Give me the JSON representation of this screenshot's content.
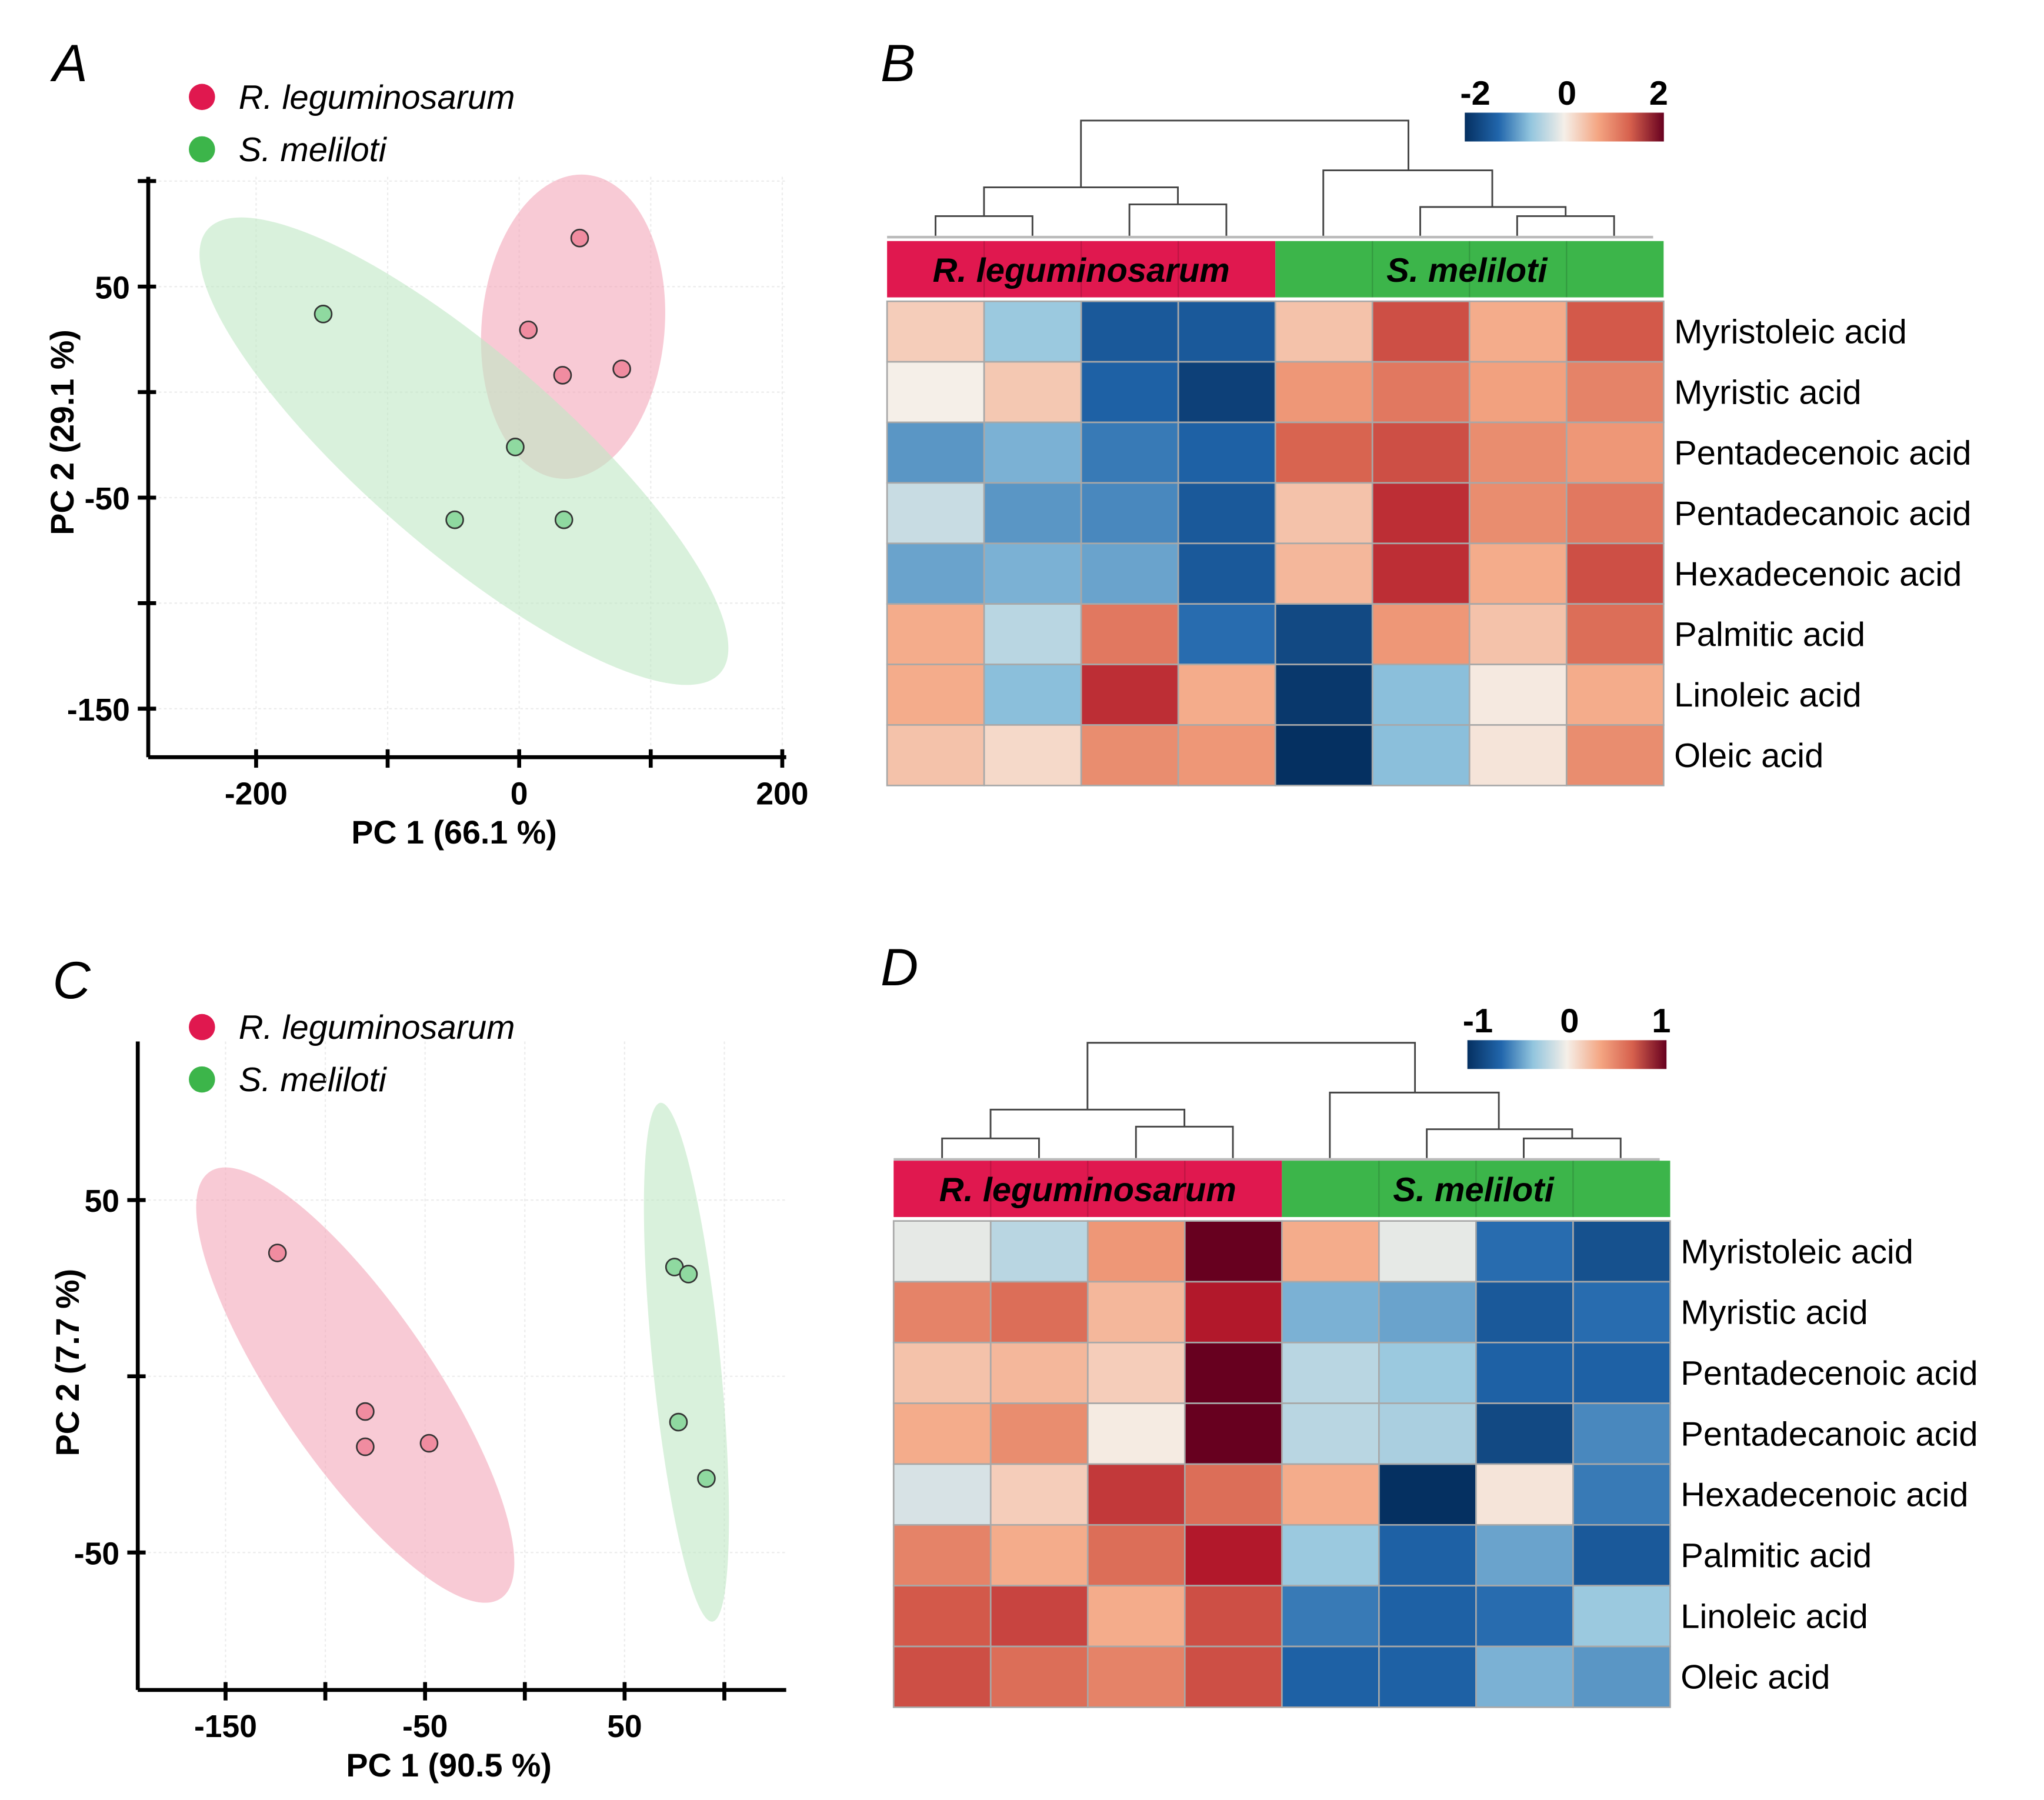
{
  "colors": {
    "r_leguminosarum": "#e0184f",
    "s_meliloti": "#3cb54a",
    "point_pink": "#f08ca0",
    "point_green": "#8fd9a0",
    "ellipse_pink": "#f4a7b9",
    "ellipse_green": "#bfe8c5"
  },
  "chart_data": [
    {
      "id": "A",
      "type": "scatter",
      "panel_label": "A",
      "xlabel": "PC 1 (66.1 %)",
      "ylabel": "PC 2 (29.1 %)",
      "xlim": [
        -282,
        203
      ],
      "ylim": [
        -173,
        102
      ],
      "xticks": [
        -200,
        -100,
        0,
        100,
        200
      ],
      "xtick_labels": [
        "-200",
        "0",
        "200"
      ],
      "xtick_label_values": [
        -200,
        0,
        200
      ],
      "yticks": [
        100,
        50,
        0,
        -50,
        -100,
        -150
      ],
      "ytick_labels": [
        "50",
        "-50",
        "-150"
      ],
      "ytick_label_values": [
        50,
        -50,
        -150
      ],
      "grid": true,
      "legend_position": "top-left",
      "series": [
        {
          "name": "R. leguminosarum",
          "color_key": "r_leguminosarum",
          "points": [
            [
              46,
              73
            ],
            [
              7,
              29.5
            ],
            [
              33,
              8
            ],
            [
              78,
              11
            ]
          ],
          "ellipse": {
            "center": [
              41,
              31
            ],
            "major_end": [
              51,
              103
            ],
            "minor_ratio": 0.6
          }
        },
        {
          "name": "S. meliloti",
          "color_key": "s_meliloti",
          "points": [
            [
              -149,
              37
            ],
            [
              -3,
              -26
            ],
            [
              -49,
              -60.5
            ],
            [
              34,
              -60.5
            ]
          ],
          "ellipse": {
            "center": [
              -42,
              -28
            ],
            "major_end": [
              -237,
              77
            ],
            "minor_ratio": 0.29
          }
        }
      ]
    },
    {
      "id": "B",
      "type": "heatmap",
      "panel_label": "B",
      "color_scale": {
        "min": -2,
        "max": 2,
        "labels": [
          "-2",
          "0",
          "2"
        ]
      },
      "groups": [
        {
          "name": "R. leguminosarum",
          "columns": 4
        },
        {
          "name": "S. meliloti",
          "columns": 4
        }
      ],
      "rows": [
        "Myristoleic acid",
        "Myristic acid",
        "Pentadecenoic acid",
        "Pentadecanoic acid",
        "Hexadecenoic acid",
        "Palmitic acid",
        "Linoleic acid",
        "Oleic acid"
      ],
      "values": [
        [
          0.3,
          -0.6,
          -1.5,
          -1.5,
          0.4,
          1.5,
          0.6,
          1.4
        ],
        [
          0.0,
          0.35,
          -1.4,
          -1.8,
          0.8,
          1.1,
          0.7,
          1.0
        ],
        [
          -1.0,
          -0.8,
          -1.2,
          -1.4,
          1.3,
          1.5,
          0.9,
          0.8
        ],
        [
          -0.3,
          -1.0,
          -1.1,
          -1.5,
          0.4,
          1.8,
          0.9,
          1.1
        ],
        [
          -0.9,
          -0.8,
          -0.9,
          -1.5,
          0.5,
          1.8,
          0.6,
          1.5
        ],
        [
          0.6,
          -0.4,
          1.1,
          -1.3,
          -1.7,
          0.8,
          0.4,
          1.2
        ],
        [
          0.6,
          -0.7,
          1.8,
          0.6,
          -1.9,
          -0.7,
          0.05,
          0.6
        ],
        [
          0.4,
          0.2,
          0.9,
          0.8,
          -2.2,
          -0.7,
          0.1,
          0.9
        ]
      ]
    },
    {
      "id": "C",
      "type": "scatter",
      "panel_label": "C",
      "xlabel": "PC 1 (90.5 %)",
      "ylabel": "PC 2 (7.7 %)",
      "xlim": [
        -194,
        131
      ],
      "ylim": [
        -89,
        95
      ],
      "xticks": [
        -150,
        -100,
        -50,
        0,
        50,
        100
      ],
      "xtick_labels": [
        "-150",
        "-50",
        "50"
      ],
      "xtick_label_values": [
        -150,
        -50,
        50
      ],
      "yticks": [
        50,
        0,
        -50
      ],
      "ytick_labels": [
        "50",
        "-50"
      ],
      "ytick_label_values": [
        50,
        -50
      ],
      "grid": true,
      "legend_position": "top-left",
      "series": [
        {
          "name": "R. leguminosarum",
          "color_key": "r_leguminosarum",
          "points": [
            [
              -124,
              35
            ],
            [
              -80,
              -10
            ],
            [
              -80,
              -20
            ],
            [
              -48,
              -19
            ]
          ],
          "ellipse": {
            "center": [
              -85,
              -2.5
            ],
            "major_end": [
              -158,
              58
            ],
            "minor_ratio": 0.3
          }
        },
        {
          "name": "S. meliloti",
          "color_key": "s_meliloti",
          "points": [
            [
              75,
              31
            ],
            [
              82,
              29
            ],
            [
              77,
              -13
            ],
            [
              91,
              -29
            ]
          ],
          "ellipse": {
            "center": [
              81,
              4
            ],
            "major_end": [
              68,
              77.6
            ],
            "minor_ratio": 0.13
          }
        }
      ]
    },
    {
      "id": "D",
      "type": "heatmap",
      "panel_label": "D",
      "color_scale": {
        "min": -1,
        "max": 1,
        "labels": [
          "-1",
          "0",
          "1"
        ]
      },
      "groups": [
        {
          "name": "R. leguminosarum",
          "columns": 4
        },
        {
          "name": "S. meliloti",
          "columns": 4
        }
      ],
      "rows": [
        "Myristoleic acid",
        "Myristic acid",
        "Pentadecenoic acid",
        "Pentadecanoic acid",
        "Hexadecenoic acid",
        "Palmitic acid",
        "Linoleic acid",
        "Oleic acid"
      ],
      "values": [
        [
          -0.05,
          -0.2,
          0.4,
          1.2,
          0.3,
          -0.05,
          -0.65,
          -0.8
        ],
        [
          0.5,
          0.6,
          0.25,
          1.0,
          -0.4,
          -0.45,
          -0.75,
          -0.65
        ],
        [
          0.2,
          0.25,
          0.15,
          1.3,
          -0.2,
          -0.3,
          -0.7,
          -0.7
        ],
        [
          0.3,
          0.45,
          0.02,
          1.2,
          -0.2,
          -0.25,
          -0.85,
          -0.55
        ],
        [
          -0.1,
          0.15,
          0.85,
          0.6,
          0.3,
          -1.0,
          0.05,
          -0.6
        ],
        [
          0.5,
          0.3,
          0.6,
          1.0,
          -0.3,
          -0.7,
          -0.45,
          -0.75
        ],
        [
          0.7,
          0.8,
          0.3,
          0.75,
          -0.6,
          -0.7,
          -0.65,
          -0.3
        ],
        [
          0.75,
          0.6,
          0.5,
          0.75,
          -0.7,
          -0.7,
          -0.4,
          -0.5
        ]
      ]
    }
  ]
}
